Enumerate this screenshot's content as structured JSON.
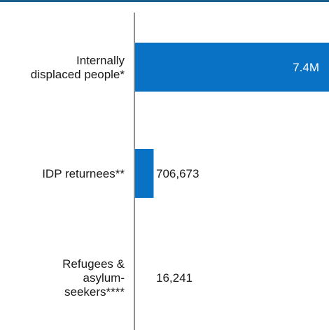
{
  "chart_data": {
    "type": "bar",
    "orientation": "horizontal",
    "categories": [
      [
        "Internally",
        "displaced people*"
      ],
      [
        "IDP returnees**"
      ],
      [
        "Refugees &",
        "asylum-",
        "seekers****"
      ]
    ],
    "values": [
      7400000,
      706673,
      16241
    ],
    "value_labels": [
      "7.4M",
      "706,673",
      "16,241"
    ],
    "title": "",
    "xlabel": "",
    "ylabel": "",
    "xlim": [
      0,
      7400000
    ],
    "grid": false,
    "legend": "none"
  },
  "colors": {
    "bar": "#0a72c4",
    "axis": "#6b6b6b",
    "top_rule": "#1a5f8a",
    "label_inside": "#ffffff",
    "label_outside": "#1a1a1a"
  }
}
